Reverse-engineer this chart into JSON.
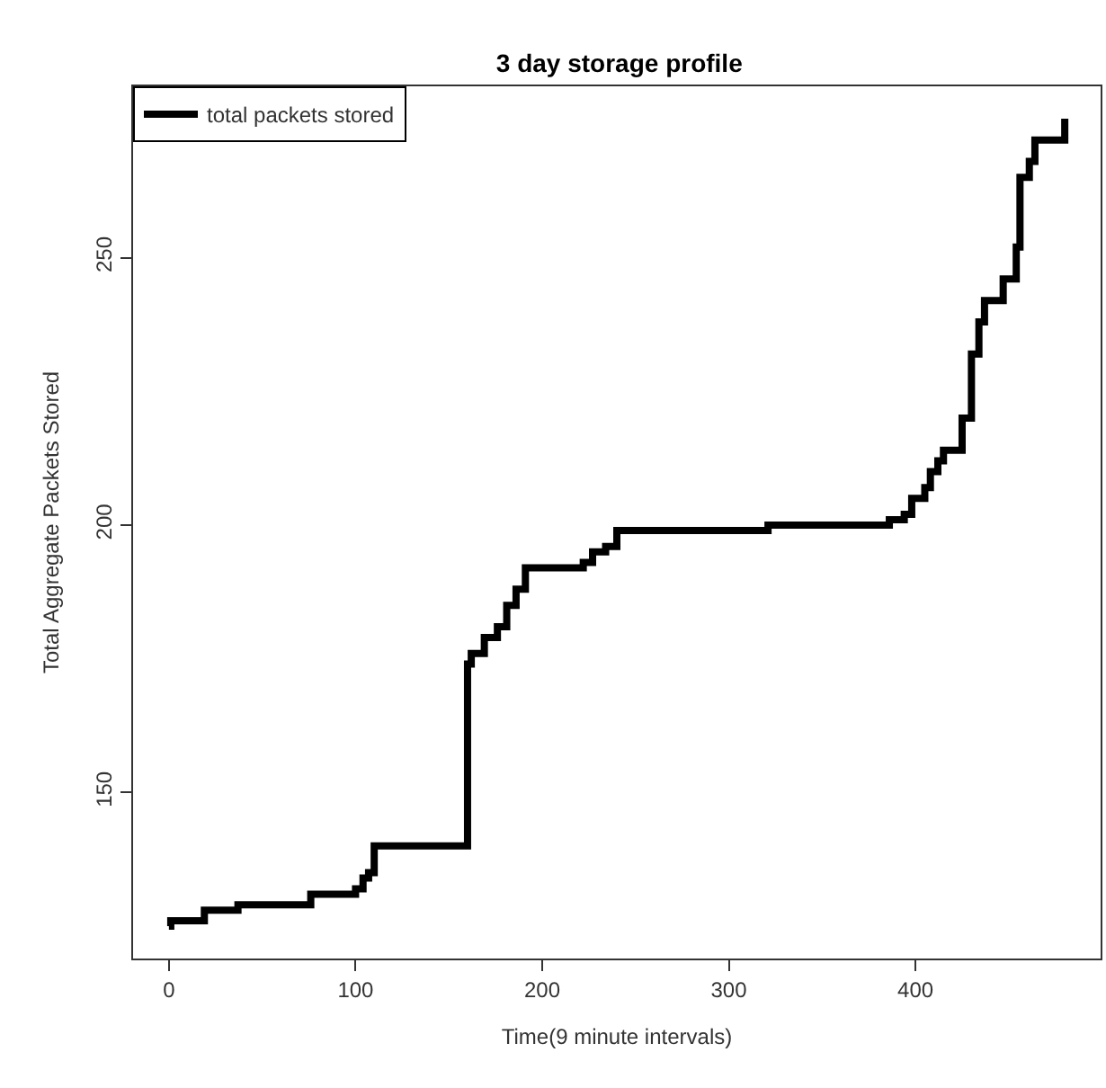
{
  "chart_data": {
    "type": "step",
    "title": "3 day storage profile",
    "xlabel": "Time(9 minute intervals)",
    "ylabel": "Total Aggregate Packets Stored",
    "x": [
      0,
      1,
      19,
      37,
      76,
      100,
      104,
      107,
      110,
      160,
      162,
      169,
      176,
      181,
      186,
      191,
      222,
      227,
      234,
      240,
      321,
      386,
      394,
      398,
      405,
      408,
      412,
      415,
      425,
      430,
      434,
      437,
      447,
      454,
      456,
      461,
      464,
      480
    ],
    "series": [
      {
        "name": "total packets stored",
        "color": "#000000",
        "values": [
          125,
          126,
          128,
          129,
          131,
          132,
          134,
          135,
          140,
          174,
          176,
          179,
          181,
          185,
          188,
          192,
          193,
          195,
          196,
          199,
          200,
          201,
          202,
          205,
          207,
          210,
          212,
          214,
          220,
          232,
          238,
          242,
          246,
          252,
          265,
          268,
          272,
          276
        ]
      }
    ],
    "xlim": [
      -19.2,
      499.2
    ],
    "ylim": [
      118.96,
      282.04
    ],
    "xticks": [
      0,
      100,
      200,
      300,
      400
    ],
    "yticks": [
      150,
      200,
      250
    ],
    "legend": "top left",
    "line_style": "solid"
  }
}
